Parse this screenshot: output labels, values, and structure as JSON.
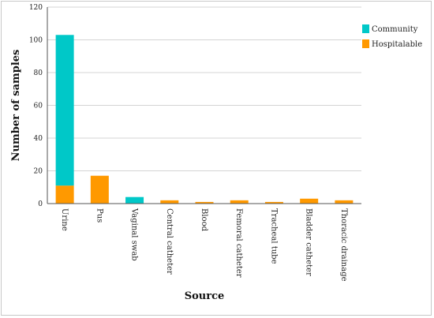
{
  "chart_data": {
    "type": "bar",
    "stacked": true,
    "categories": [
      "Urine",
      "Pus",
      "Vaginal swab",
      "Central catheter",
      "Blood",
      "Femoral catheter",
      "Tracheal tube",
      "Bladder catheter",
      "Thoracic drainage"
    ],
    "series": [
      {
        "name": "Hospitalable",
        "color": "#ff9900",
        "values": [
          11,
          17,
          0,
          2,
          1,
          2,
          1,
          3,
          2
        ]
      },
      {
        "name": "Community",
        "color": "#00c8c8",
        "values": [
          92,
          0,
          4,
          0,
          0,
          0,
          0,
          0,
          0
        ]
      }
    ],
    "legend_order": [
      "Community",
      "Hospitalable"
    ],
    "xlabel": "Source",
    "ylabel": "Number of samples",
    "ylim": [
      0,
      120
    ],
    "yticks": [
      0,
      20,
      40,
      60,
      80,
      100,
      120
    ],
    "grid": true,
    "legend_position": "top-right"
  }
}
